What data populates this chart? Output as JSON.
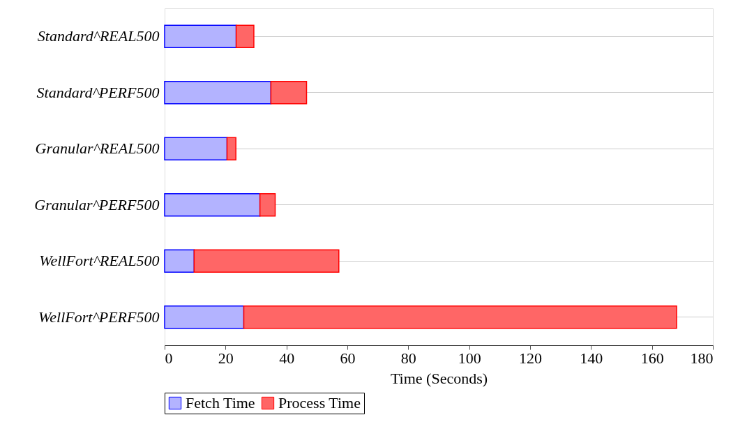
{
  "chart_data": {
    "type": "bar",
    "orientation": "horizontal",
    "stacked": true,
    "categories": [
      "Standard^REAL500",
      "Standard^PERF500",
      "Granular^REAL500",
      "Granular^PERF500",
      "WellFort^REAL500",
      "WellFort^PERF500"
    ],
    "series": [
      {
        "name": "Fetch Time",
        "color": "#b3b3ff",
        "values": [
          23.5,
          34.9,
          20.5,
          31.3,
          9.7,
          26.0
        ]
      },
      {
        "name": "Process Time",
        "color": "#ff6666",
        "values": [
          5.8,
          11.7,
          2.9,
          5.0,
          47.5,
          142.1
        ]
      }
    ],
    "xlabel": "Time (Seconds)",
    "xlim": [
      0,
      180
    ],
    "xticks": [
      0,
      20,
      40,
      60,
      80,
      100,
      120,
      140,
      160,
      180
    ],
    "grid": "y",
    "legend": "bottom"
  }
}
